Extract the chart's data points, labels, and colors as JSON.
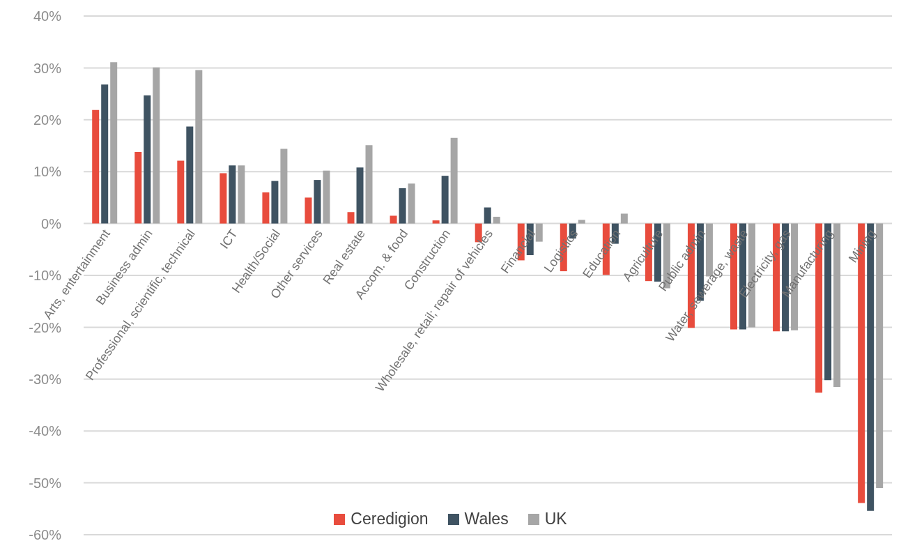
{
  "chart_data": {
    "type": "bar",
    "categories": [
      "Arts, entertainment",
      "Business admin",
      "Professional, scientific, technical",
      "ICT",
      "Health/Social",
      "Other services",
      "Real estate",
      "Accom. & food",
      "Construction",
      "Wholesale, retail; repair of vehicles",
      "Financial",
      "Logistics",
      "Education",
      "Agriculture",
      "Public admin",
      "Water, sewerage, waste",
      "Electricity, gas",
      "Manufacturing",
      "Mining"
    ],
    "series": [
      {
        "name": "Ceredigion",
        "color": "#e84c3d",
        "values": [
          21.9,
          13.8,
          12.1,
          9.7,
          6.0,
          5.0,
          2.2,
          1.5,
          0.6,
          -3.6,
          -7.1,
          -9.2,
          -9.9,
          -11.1,
          -20.1,
          -20.4,
          -20.8,
          -32.6,
          -53.9
        ]
      },
      {
        "name": "Wales",
        "color": "#3f5362",
        "values": [
          26.8,
          24.7,
          18.7,
          11.2,
          8.2,
          8.4,
          10.8,
          6.8,
          9.2,
          3.1,
          -6.1,
          -2.9,
          -3.9,
          -11.2,
          -14.9,
          -20.4,
          -20.8,
          -30.2,
          -55.4
        ]
      },
      {
        "name": "UK",
        "color": "#a6a6a6",
        "values": [
          31.1,
          30.1,
          29.6,
          11.2,
          14.4,
          10.2,
          15.1,
          7.7,
          16.5,
          1.3,
          -3.5,
          0.7,
          1.9,
          -12.5,
          -10.2,
          -20.0,
          -20.6,
          -31.5,
          -51.0
        ]
      }
    ],
    "ylim": [
      -60,
      40
    ],
    "yticks": [
      {
        "value": -60,
        "label": "-60%"
      },
      {
        "value": -50,
        "label": "-50%"
      },
      {
        "value": -40,
        "label": "-40%"
      },
      {
        "value": -30,
        "label": "-30%"
      },
      {
        "value": -20,
        "label": "-20%"
      },
      {
        "value": -10,
        "label": "-10%"
      },
      {
        "value": 0,
        "label": "0%"
      },
      {
        "value": 10,
        "label": "10%"
      },
      {
        "value": 20,
        "label": "20%"
      },
      {
        "value": 30,
        "label": "30%"
      },
      {
        "value": 40,
        "label": "40%"
      }
    ],
    "grid": "y",
    "legend": "bottom"
  }
}
